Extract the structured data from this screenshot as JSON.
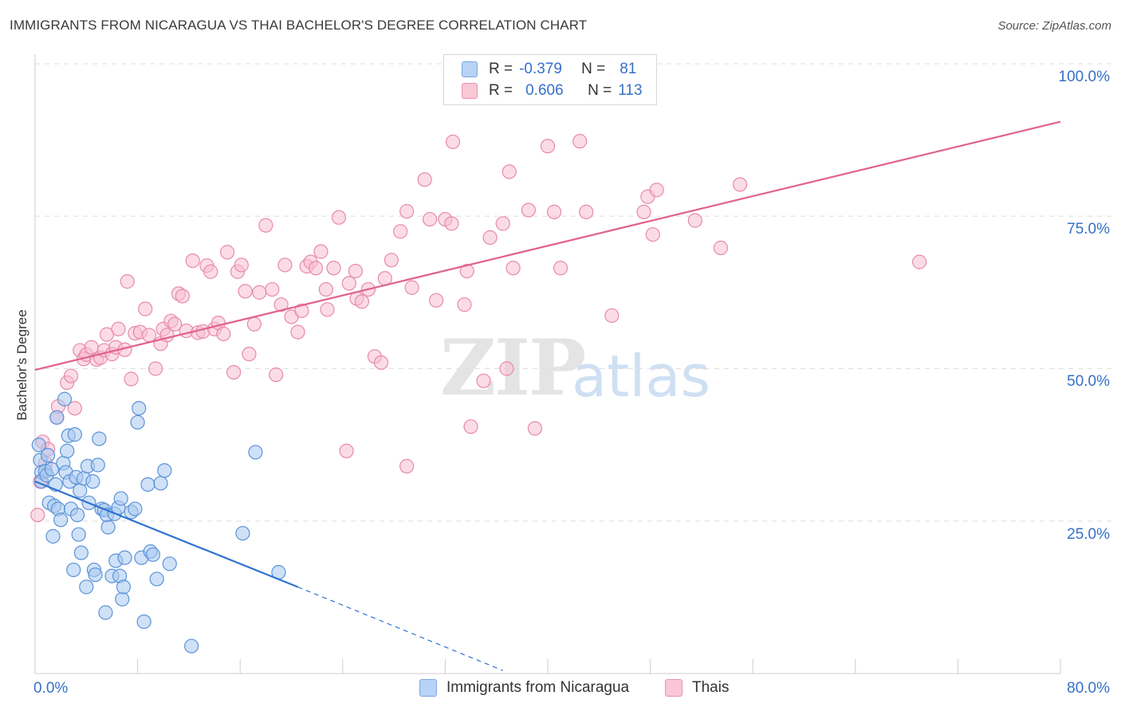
{
  "header": {
    "title": "IMMIGRANTS FROM NICARAGUA VS THAI BACHELOR'S DEGREE CORRELATION CHART",
    "source": "Source: ZipAtlas.com"
  },
  "watermark": {
    "zip": "ZIP",
    "atlas": "atlas"
  },
  "legend": {
    "rows": [
      {
        "r_label": "R =",
        "r_value": "-0.379",
        "n_label": "N =",
        "n_value": "81",
        "color": "#b7d3f5"
      },
      {
        "r_label": "R =",
        "r_value": "0.606",
        "n_label": "N =",
        "n_value": "113",
        "color": "#f9c7d6"
      }
    ]
  },
  "bottom_legend": {
    "series1": "Immigrants from Nicaragua",
    "series2": "Thais"
  },
  "axes": {
    "y_title": "Bachelor's Degree",
    "x_min_label": "0.0%",
    "x_max_label": "80.0%",
    "y_ticks": [
      "100.0%",
      "75.0%",
      "50.0%",
      "25.0%"
    ]
  },
  "colors": {
    "blue_fill": "#a8c8f0",
    "blue_stroke": "#5b93d8",
    "blue_line": "#2e72d2",
    "pink_fill": "#f7c0d1",
    "pink_stroke": "#e88aa8",
    "pink_line": "#e0628e"
  },
  "chart_data": {
    "type": "scatter",
    "title": "IMMIGRANTS FROM NICARAGUA VS THAI BACHELOR'S DEGREE CORRELATION CHART",
    "xlabel": "",
    "ylabel": "Bachelor's Degree",
    "xlim": [
      0,
      80
    ],
    "ylim": [
      0,
      100
    ],
    "grid": true,
    "legend_position": "top-center",
    "series": [
      {
        "name": "Immigrants from Nicaragua",
        "r": -0.379,
        "n": 81,
        "trend": {
          "x0": 0,
          "y0": 31.5,
          "x1": 20.5,
          "y1": 14.2,
          "dashed_to_x": 36.5,
          "dashed_to_y": 0.5
        },
        "points": [
          [
            0.3,
            37.5
          ],
          [
            0.4,
            35
          ],
          [
            0.5,
            33
          ],
          [
            0.5,
            31.5
          ],
          [
            0.8,
            33.2
          ],
          [
            0.9,
            32.5
          ],
          [
            1.0,
            35.8
          ],
          [
            1.1,
            28
          ],
          [
            1.3,
            33.5
          ],
          [
            1.4,
            22.5
          ],
          [
            1.5,
            27.5
          ],
          [
            1.6,
            31
          ],
          [
            1.7,
            42
          ],
          [
            1.8,
            27
          ],
          [
            2.0,
            25.2
          ],
          [
            2.2,
            34.5
          ],
          [
            2.3,
            45
          ],
          [
            2.4,
            33
          ],
          [
            2.5,
            36.5
          ],
          [
            2.6,
            39
          ],
          [
            2.7,
            31.5
          ],
          [
            2.8,
            27
          ],
          [
            3.0,
            17
          ],
          [
            3.1,
            39.2
          ],
          [
            3.2,
            32.2
          ],
          [
            3.3,
            26
          ],
          [
            3.4,
            22.8
          ],
          [
            3.5,
            30
          ],
          [
            3.6,
            19.8
          ],
          [
            3.8,
            32
          ],
          [
            4.0,
            14.2
          ],
          [
            4.1,
            34
          ],
          [
            4.2,
            28
          ],
          [
            4.5,
            31.5
          ],
          [
            4.6,
            17
          ],
          [
            4.7,
            16.2
          ],
          [
            4.9,
            34.2
          ],
          [
            5.0,
            38.5
          ],
          [
            5.2,
            27
          ],
          [
            5.4,
            26.8
          ],
          [
            5.5,
            10
          ],
          [
            5.6,
            26
          ],
          [
            5.7,
            24
          ],
          [
            6.0,
            16
          ],
          [
            6.2,
            26.2
          ],
          [
            6.3,
            18.5
          ],
          [
            6.5,
            27.2
          ],
          [
            6.6,
            16
          ],
          [
            6.7,
            28.7
          ],
          [
            6.8,
            12.2
          ],
          [
            6.9,
            14.2
          ],
          [
            7.0,
            19
          ],
          [
            7.5,
            26.5
          ],
          [
            7.8,
            27
          ],
          [
            8.0,
            41.2
          ],
          [
            8.1,
            43.5
          ],
          [
            8.3,
            19
          ],
          [
            8.5,
            8.5
          ],
          [
            8.8,
            31
          ],
          [
            9.0,
            20
          ],
          [
            9.2,
            19.5
          ],
          [
            9.5,
            15.5
          ],
          [
            9.8,
            31.2
          ],
          [
            10.1,
            33.3
          ],
          [
            10.5,
            18
          ],
          [
            12.2,
            4.5
          ],
          [
            16.2,
            23
          ],
          [
            17.2,
            36.3
          ],
          [
            19.0,
            16.6
          ]
        ]
      },
      {
        "name": "Thais",
        "r": 0.606,
        "n": 113,
        "trend": {
          "x0": 0,
          "y0": 49.8,
          "x1": 80,
          "y1": 90.5
        },
        "points": [
          [
            0.2,
            26
          ],
          [
            0.4,
            31.5
          ],
          [
            0.6,
            38
          ],
          [
            0.8,
            34.5
          ],
          [
            1.0,
            36.8
          ],
          [
            1.7,
            42
          ],
          [
            1.8,
            43.8
          ],
          [
            2.5,
            47.7
          ],
          [
            2.8,
            48.8
          ],
          [
            3.1,
            43.5
          ],
          [
            3.5,
            53
          ],
          [
            3.8,
            51.6
          ],
          [
            4.0,
            52.3
          ],
          [
            4.4,
            53.5
          ],
          [
            4.8,
            51.5
          ],
          [
            5.1,
            51.8
          ],
          [
            5.4,
            53
          ],
          [
            5.6,
            55.6
          ],
          [
            6.0,
            52.4
          ],
          [
            6.3,
            53.5
          ],
          [
            6.5,
            56.5
          ],
          [
            7.0,
            53.1
          ],
          [
            7.2,
            64.3
          ],
          [
            7.5,
            48.3
          ],
          [
            7.8,
            55.8
          ],
          [
            8.2,
            56
          ],
          [
            8.6,
            59.8
          ],
          [
            8.9,
            55.5
          ],
          [
            9.4,
            50
          ],
          [
            9.8,
            54.1
          ],
          [
            10.0,
            56.5
          ],
          [
            10.3,
            55.5
          ],
          [
            10.6,
            57.8
          ],
          [
            10.9,
            57.3
          ],
          [
            11.2,
            62.3
          ],
          [
            11.5,
            61.9
          ],
          [
            11.8,
            56.2
          ],
          [
            12.3,
            67.7
          ],
          [
            12.7,
            55.9
          ],
          [
            13.1,
            56.1
          ],
          [
            13.4,
            66.9
          ],
          [
            13.7,
            65.9
          ],
          [
            14.0,
            56.5
          ],
          [
            14.3,
            57.5
          ],
          [
            14.7,
            55.7
          ],
          [
            15.0,
            69.1
          ],
          [
            15.5,
            49.4
          ],
          [
            15.8,
            65.9
          ],
          [
            16.1,
            67
          ],
          [
            16.4,
            62.7
          ],
          [
            16.7,
            52.4
          ],
          [
            17.1,
            57.3
          ],
          [
            17.5,
            62.5
          ],
          [
            18.0,
            73.5
          ],
          [
            18.5,
            63
          ],
          [
            18.8,
            49
          ],
          [
            19.2,
            60.5
          ],
          [
            19.5,
            67
          ],
          [
            20.0,
            58.5
          ],
          [
            20.5,
            56
          ],
          [
            20.8,
            59.5
          ],
          [
            21.2,
            66.8
          ],
          [
            21.5,
            67.5
          ],
          [
            21.9,
            66.5
          ],
          [
            22.3,
            69.2
          ],
          [
            22.7,
            63
          ],
          [
            22.8,
            59.7
          ],
          [
            23.3,
            66.5
          ],
          [
            23.7,
            74.8
          ],
          [
            24.5,
            64
          ],
          [
            25.0,
            66
          ],
          [
            25.1,
            61.5
          ],
          [
            25.5,
            61
          ],
          [
            26.0,
            63
          ],
          [
            26.5,
            52
          ],
          [
            27.0,
            51
          ],
          [
            27.3,
            64.8
          ],
          [
            27.8,
            67.8
          ],
          [
            28.5,
            72.5
          ],
          [
            29.0,
            75.8
          ],
          [
            29.4,
            63.3
          ],
          [
            30.4,
            81
          ],
          [
            30.8,
            74.5
          ],
          [
            31.3,
            61.2
          ],
          [
            32.0,
            74.5
          ],
          [
            32.5,
            73.8
          ],
          [
            32.6,
            87.2
          ],
          [
            33.5,
            60.5
          ],
          [
            33.7,
            66
          ],
          [
            34.0,
            40.5
          ],
          [
            35.0,
            48
          ],
          [
            35.5,
            71.5
          ],
          [
            36.5,
            73.8
          ],
          [
            36.8,
            50
          ],
          [
            37.0,
            82.3
          ],
          [
            37.3,
            66.5
          ],
          [
            38.5,
            76
          ],
          [
            39.0,
            40.2
          ],
          [
            40.0,
            86.5
          ],
          [
            40.5,
            75.7
          ],
          [
            41.0,
            66.5
          ],
          [
            42.5,
            87.3
          ],
          [
            43.0,
            75.7
          ],
          [
            45.0,
            58.7
          ],
          [
            47.5,
            75.7
          ],
          [
            47.8,
            78.2
          ],
          [
            48.2,
            72
          ],
          [
            48.5,
            79.3
          ],
          [
            51.5,
            74.3
          ],
          [
            53.5,
            69.8
          ],
          [
            55.0,
            80.2
          ],
          [
            69.0,
            67.5
          ],
          [
            24.3,
            36.5
          ],
          [
            29.0,
            34
          ]
        ]
      }
    ]
  }
}
